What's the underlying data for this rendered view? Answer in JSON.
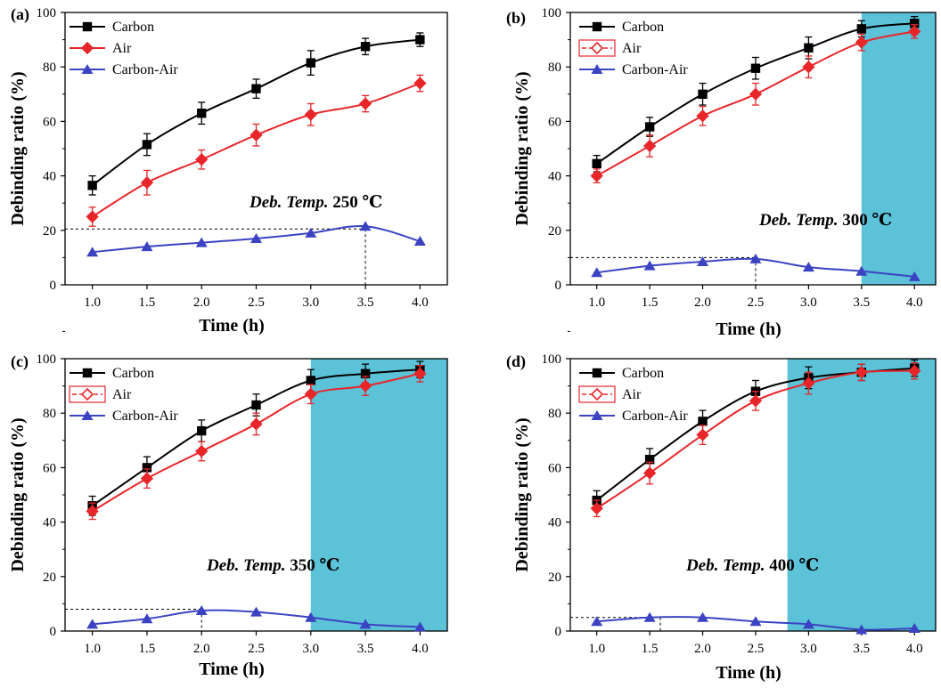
{
  "chart_data": [
    {
      "type": "line",
      "panel_label": "(a)",
      "xlabel": "Time (h)",
      "ylabel": "Debinding ratio (%)",
      "xlim": [
        0.75,
        4.25
      ],
      "ylim": [
        0,
        100
      ],
      "xticks": [
        "1.0",
        "1.5",
        "2.0",
        "2.5",
        "3.0",
        "3.5",
        "4.0"
      ],
      "yticks": [
        "0",
        "20",
        "40",
        "60",
        "80",
        "100"
      ],
      "x": [
        1.0,
        1.5,
        2.0,
        2.5,
        3.0,
        3.5,
        4.0
      ],
      "series": [
        {
          "name": "Carbon",
          "color": "#000000",
          "marker": "square",
          "values": [
            36.5,
            51.5,
            63,
            72,
            81.5,
            87.5,
            90
          ],
          "errors": [
            3.5,
            4,
            4,
            3.5,
            4.5,
            3,
            2.5
          ]
        },
        {
          "name": "Air",
          "color": "#e8262a",
          "marker": "diamond",
          "values": [
            25,
            37.5,
            46,
            55,
            62.5,
            66.5,
            74
          ],
          "errors": [
            3.5,
            4.5,
            3.5,
            4,
            4,
            3,
            3
          ]
        },
        {
          "name": "Carbon-Air",
          "color": "#3b43c2",
          "marker": "triangle",
          "values": [
            12,
            14,
            15.5,
            17,
            19,
            21.5,
            16
          ]
        }
      ],
      "annotation": {
        "italic": "Deb. Temp.",
        "value": "250 ℃"
      },
      "peak": {
        "x": 3.5,
        "y": 20.5
      },
      "shade_from": null,
      "legend_boxed": false
    },
    {
      "type": "line",
      "panel_label": "(b)",
      "xlabel": "Time (h)",
      "ylabel": "Debinding ratio (%)",
      "xlim": [
        0.75,
        4.2
      ],
      "ylim": [
        0,
        100
      ],
      "xticks": [
        "1.0",
        "1.5",
        "2.0",
        "2.5",
        "3.0",
        "3.5",
        "4.0"
      ],
      "yticks": [
        "0",
        "20",
        "40",
        "60",
        "80",
        "100"
      ],
      "x": [
        1.0,
        1.5,
        2.0,
        2.5,
        3.0,
        3.5,
        4.0
      ],
      "series": [
        {
          "name": "Carbon",
          "color": "#000000",
          "marker": "square",
          "values": [
            44.5,
            58,
            70,
            79.5,
            87,
            94,
            96
          ],
          "errors": [
            3,
            3.5,
            4,
            4,
            4,
            3,
            2.5
          ]
        },
        {
          "name": "Air",
          "color": "#e8262a",
          "marker": "diamond",
          "values": [
            40,
            51,
            62,
            70,
            80,
            89,
            93
          ],
          "errors": [
            2.5,
            4,
            3.5,
            4,
            4,
            3,
            2.5
          ]
        },
        {
          "name": "Carbon-Air",
          "color": "#3b43c2",
          "marker": "triangle",
          "values": [
            4.5,
            7,
            8.5,
            9.5,
            6.5,
            5,
            3
          ]
        }
      ],
      "annotation": {
        "italic": "Deb. Temp.",
        "value": "300 ℃"
      },
      "peak": {
        "x": 2.5,
        "y": 10
      },
      "shade_from": 3.5,
      "legend_boxed": true
    },
    {
      "type": "line",
      "panel_label": "(c)",
      "xlabel": "Time (h)",
      "ylabel": "Debinding ratio (%)",
      "xlim": [
        0.75,
        4.25
      ],
      "ylim": [
        0,
        100
      ],
      "xticks": [
        "1.0",
        "1.5",
        "2.0",
        "2.5",
        "3.0",
        "3.5",
        "4.0"
      ],
      "yticks": [
        "0",
        "20",
        "40",
        "60",
        "80",
        "100"
      ],
      "x": [
        1.0,
        1.5,
        2.0,
        2.5,
        3.0,
        3.5,
        4.0
      ],
      "series": [
        {
          "name": "Carbon",
          "color": "#000000",
          "marker": "square",
          "values": [
            46,
            60,
            73.5,
            83,
            92,
            94.5,
            96
          ],
          "errors": [
            3.5,
            4,
            4,
            4,
            4,
            3.5,
            3
          ]
        },
        {
          "name": "Air",
          "color": "#e8262a",
          "marker": "diamond",
          "values": [
            44,
            56,
            66,
            76,
            87,
            90,
            94.5
          ],
          "errors": [
            3,
            3.5,
            3.5,
            4,
            3.5,
            3.5,
            3
          ]
        },
        {
          "name": "Carbon-Air",
          "color": "#3b43c2",
          "marker": "triangle",
          "values": [
            2.5,
            4.5,
            7.5,
            7,
            5,
            2.5,
            1.5
          ]
        }
      ],
      "annotation": {
        "italic": "Deb. Temp.",
        "value": "350 ℃"
      },
      "peak": {
        "x": 2.0,
        "y": 8
      },
      "shade_from": 3.0,
      "legend_boxed": true
    },
    {
      "type": "line",
      "panel_label": "(d)",
      "xlabel": "Time (h)",
      "ylabel": "Debinding ratio (%)",
      "xlim": [
        0.75,
        4.2
      ],
      "ylim": [
        0,
        100
      ],
      "xticks": [
        "1.0",
        "1.5",
        "2.0",
        "2.5",
        "3.0",
        "3.5",
        "4.0"
      ],
      "yticks": [
        "0",
        "20",
        "40",
        "60",
        "80",
        "100"
      ],
      "x": [
        1.0,
        1.5,
        2.0,
        2.5,
        3.0,
        3.5,
        4.0
      ],
      "series": [
        {
          "name": "Carbon",
          "color": "#000000",
          "marker": "square",
          "values": [
            48,
            63,
            77,
            88,
            93,
            95,
            96.5
          ],
          "errors": [
            3.5,
            4,
            4,
            4,
            4,
            3,
            3
          ]
        },
        {
          "name": "Air",
          "color": "#e8262a",
          "marker": "diamond",
          "values": [
            45,
            58,
            72,
            84.5,
            91,
            95,
            95.5
          ],
          "errors": [
            3,
            4,
            3.5,
            3.5,
            4,
            3,
            3
          ]
        },
        {
          "name": "Carbon-Air",
          "color": "#3b43c2",
          "marker": "triangle",
          "values": [
            3.5,
            5,
            5,
            3.5,
            2.5,
            0.5,
            1
          ]
        }
      ],
      "annotation": {
        "italic": "Deb. Temp.",
        "value": "400 ℃"
      },
      "peak": {
        "x": 1.6,
        "y": 5
      },
      "shade_from": 2.8,
      "legend_boxed": true
    }
  ],
  "colors": {
    "shade": "#5bc2d8",
    "axis": "#000000"
  }
}
